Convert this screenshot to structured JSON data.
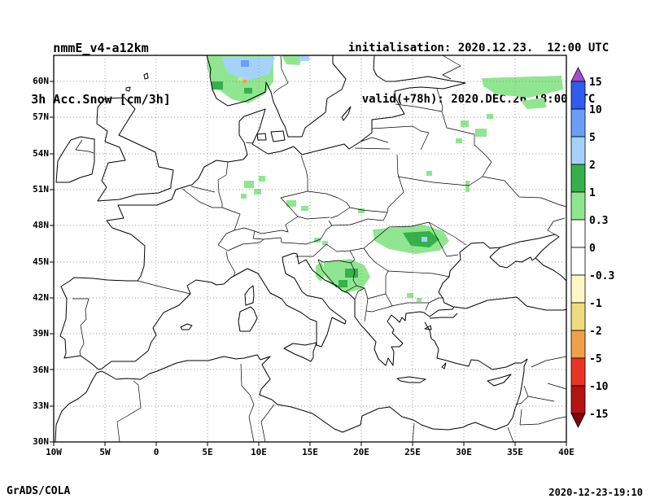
{
  "header": {
    "model": "nmmE_v4-a12km",
    "variable": "3h Acc.Snow [cm/3h]",
    "init_line": "initialisation: 2020.12.23.  12:00 UTC",
    "valid_line": "valid(+78h): 2020.DEC.26 18:00 UTC"
  },
  "axes": {
    "lat_labels": [
      "60N",
      "57N",
      "54N",
      "51N",
      "48N",
      "45N",
      "42N",
      "39N",
      "36N",
      "33N",
      "30N"
    ],
    "lon_labels": [
      "10W",
      "5W",
      "0",
      "5E",
      "10E",
      "15E",
      "20E",
      "25E",
      "30E",
      "35E",
      "40E"
    ]
  },
  "colorbar": {
    "labels": [
      "15",
      "10",
      "5",
      "2",
      "1",
      "0.3",
      "0",
      "-0.3",
      "-1",
      "-2",
      "-5",
      "-10",
      "-15"
    ],
    "band_colors": [
      "#2f5bef",
      "#6b9ef8",
      "#a5d2fb",
      "#35b04a",
      "#90e690",
      "#ffffff",
      "#ffffff",
      "#fdf7c8",
      "#eedc7e",
      "#f0a04a",
      "#ea3423",
      "#b51212"
    ],
    "arrow_top_color": "#a14fd0",
    "arrow_bottom_color": "#7e0808"
  },
  "footer": {
    "credit": "GrADS/COLA",
    "timestamp": "2020-12-23-19:10"
  },
  "chart_data": {
    "type": "heatmap",
    "title": "3h Acc.Snow [cm/3h]",
    "model": "nmmE_v4-a12km",
    "initialisation": "2020.12.23. 12:00 UTC",
    "valid": "2020.DEC.26 18:00 UTC",
    "lead_time": "+78h",
    "projection": "lat-lon",
    "lon_range": [
      -10,
      40
    ],
    "lat_range": [
      30,
      62
    ],
    "lon_ticks": [
      -10,
      -5,
      0,
      5,
      10,
      15,
      20,
      25,
      30,
      35,
      40
    ],
    "lat_ticks": [
      30,
      33,
      36,
      39,
      42,
      45,
      48,
      51,
      54,
      57,
      60
    ],
    "grid": "dotted, 5 deg lon x 3 deg lat",
    "unit": "cm/3h",
    "levels": [
      -15,
      -10,
      -5,
      -2,
      -1,
      -0.3,
      0,
      0.3,
      1,
      2,
      5,
      10,
      15
    ],
    "legend_position": "right vertical colorbar with out-of-range arrows",
    "bands": [
      {
        "range": "> 15",
        "color": "#a14fd0"
      },
      {
        "range": "10 to 15",
        "color": "#2f5bef"
      },
      {
        "range": "5 to 10",
        "color": "#6b9ef8"
      },
      {
        "range": "2 to 5",
        "color": "#a5d2fb"
      },
      {
        "range": "1 to 2",
        "color": "#35b04a"
      },
      {
        "range": "0.3 to 1",
        "color": "#90e690"
      },
      {
        "range": "-0.3 to 0.3",
        "color": "#ffffff"
      },
      {
        "range": "-1 to -0.3",
        "color": "#fdf7c8"
      },
      {
        "range": "-2 to -1",
        "color": "#eedc7e"
      },
      {
        "range": "-5 to -2",
        "color": "#f0a04a"
      },
      {
        "range": "-10 to -5",
        "color": "#ea3423"
      },
      {
        "range": "-15 to -10",
        "color": "#b51212"
      },
      {
        "range": "< -15",
        "color": "#7e0808"
      }
    ],
    "snow_regions": [
      {
        "region": "Southern Norway / Scandes",
        "approx_extent": "5-12E, 58-62N",
        "max_band": "2-5 cm"
      },
      {
        "region": "NW Russia (Novgorod/Valdai)",
        "approx_extent": "30-39E, 58-61N",
        "max_band": "0.3-1 cm"
      },
      {
        "region": "Pskov / Baltic border area",
        "approx_extent": "28-31E, 55-57N",
        "max_band": "0.3-1 cm"
      },
      {
        "region": "Central Germany (Harz)",
        "approx_extent": "8.5-10.5E, 50-52N",
        "max_band": "0.3-1 cm"
      },
      {
        "region": "Ore Mountains / Sudetes",
        "approx_extent": "12.5-15E, 49-50.5N",
        "max_band": "0.3-1 cm"
      },
      {
        "region": "Eastern Alps fringe",
        "approx_extent": "15.5-16.5E, 46.5-47N",
        "max_band": "0.3-1 cm"
      },
      {
        "region": "Carpathians (Romania)",
        "approx_extent": "21-28E, 45.5-47.8N",
        "max_band": "1-2 cm"
      },
      {
        "region": "Dinaric Alps / Bosnia / Serbia",
        "approx_extent": "16-21E, 42-45N",
        "max_band": "1-2 cm"
      },
      {
        "region": "Western Bulgaria / Rhodopes",
        "approx_extent": "24-26E, 41.5-42.5N",
        "max_band": "0.3-1 cm"
      }
    ]
  }
}
